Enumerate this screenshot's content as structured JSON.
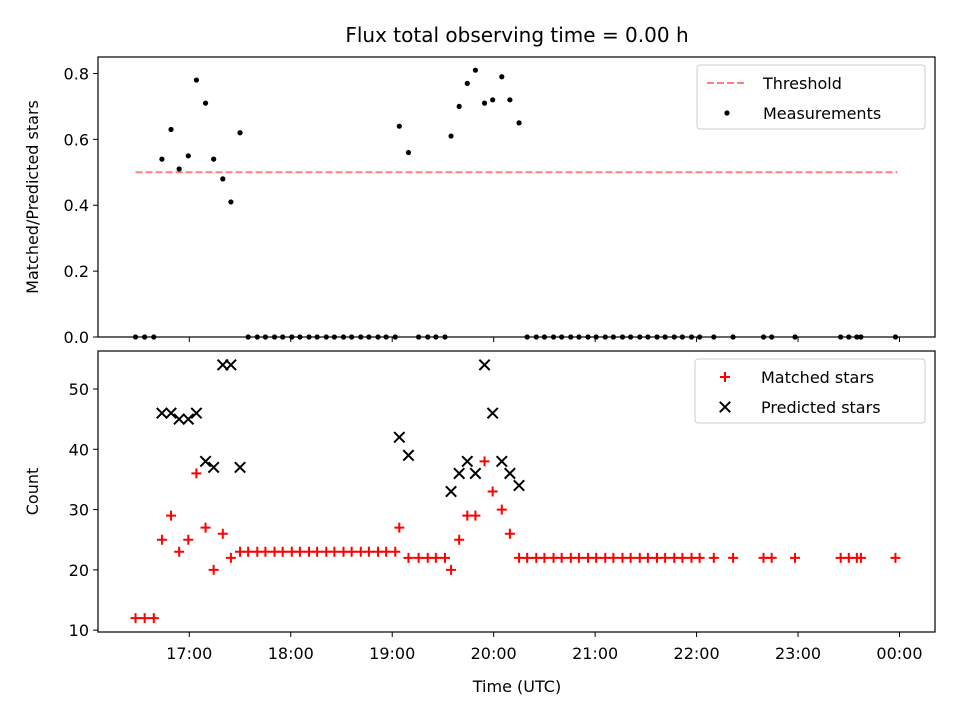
{
  "chart_data": {
    "type": "scatter",
    "title": "Flux total observing time = 0.00 h",
    "xlabel": "Time (UTC)",
    "x_unit": "hours since 00:00 on the first day shown",
    "xlim": [
      16.1,
      24.35
    ],
    "x_ticks": [
      {
        "value": 17,
        "label": "17:00"
      },
      {
        "value": 18,
        "label": "18:00"
      },
      {
        "value": 19,
        "label": "19:00"
      },
      {
        "value": 20,
        "label": "20:00"
      },
      {
        "value": 21,
        "label": "21:00"
      },
      {
        "value": 22,
        "label": "22:00"
      },
      {
        "value": 23,
        "label": "23:00"
      },
      {
        "value": 24,
        "label": "00:00"
      }
    ],
    "panels": [
      {
        "ylabel": "Matched/Predicted stars",
        "ylim": [
          0,
          0.85
        ],
        "y_ticks": [
          0,
          0.2,
          0.4,
          0.6,
          0.8
        ],
        "y_tick_labels": [
          "0.0",
          "0.2",
          "0.4",
          "0.6",
          "0.8"
        ],
        "legend": [
          "Threshold",
          "Measurements"
        ],
        "series": [
          {
            "name": "Threshold",
            "kind": "dashed-line",
            "color": "#ff7f7f",
            "x": [
              16.47,
              23.98
            ],
            "y": [
              0.5,
              0.5
            ]
          },
          {
            "name": "Measurements",
            "kind": "dot",
            "color": "#000000",
            "points": [
              [
                16.47,
                0
              ],
              [
                16.56,
                0
              ],
              [
                16.65,
                0
              ],
              [
                16.73,
                0.54
              ],
              [
                16.82,
                0.63
              ],
              [
                16.9,
                0.51
              ],
              [
                16.99,
                0.55
              ],
              [
                17.07,
                0.78
              ],
              [
                17.16,
                0.71
              ],
              [
                17.24,
                0.54
              ],
              [
                17.33,
                0.48
              ],
              [
                17.41,
                0.41
              ],
              [
                17.5,
                0.62
              ],
              [
                17.58,
                0
              ],
              [
                17.67,
                0
              ],
              [
                17.75,
                0
              ],
              [
                17.84,
                0
              ],
              [
                17.92,
                0
              ],
              [
                18.01,
                0
              ],
              [
                18.09,
                0
              ],
              [
                18.18,
                0
              ],
              [
                18.26,
                0
              ],
              [
                18.35,
                0
              ],
              [
                18.43,
                0
              ],
              [
                18.52,
                0
              ],
              [
                18.6,
                0
              ],
              [
                18.69,
                0
              ],
              [
                18.77,
                0
              ],
              [
                18.86,
                0
              ],
              [
                18.94,
                0
              ],
              [
                19.03,
                0
              ],
              [
                19.07,
                0.64
              ],
              [
                19.16,
                0.56
              ],
              [
                19.26,
                0
              ],
              [
                19.35,
                0
              ],
              [
                19.43,
                0
              ],
              [
                19.52,
                0
              ],
              [
                19.58,
                0.61
              ],
              [
                19.66,
                0.7
              ],
              [
                19.74,
                0.77
              ],
              [
                19.82,
                0.81
              ],
              [
                19.91,
                0.71
              ],
              [
                19.99,
                0.72
              ],
              [
                20.08,
                0.79
              ],
              [
                20.16,
                0.72
              ],
              [
                20.25,
                0.65
              ],
              [
                20.33,
                0
              ],
              [
                20.42,
                0
              ],
              [
                20.5,
                0
              ],
              [
                20.59,
                0
              ],
              [
                20.67,
                0
              ],
              [
                20.76,
                0
              ],
              [
                20.84,
                0
              ],
              [
                20.93,
                0
              ],
              [
                21.01,
                0
              ],
              [
                21.1,
                0
              ],
              [
                21.18,
                0
              ],
              [
                21.27,
                0
              ],
              [
                21.35,
                0
              ],
              [
                21.44,
                0
              ],
              [
                21.52,
                0
              ],
              [
                21.61,
                0
              ],
              [
                21.69,
                0
              ],
              [
                21.78,
                0
              ],
              [
                21.86,
                0
              ],
              [
                21.95,
                0
              ],
              [
                22.03,
                0
              ],
              [
                22.17,
                0
              ],
              [
                22.36,
                0
              ],
              [
                22.66,
                0
              ],
              [
                22.74,
                0
              ],
              [
                22.97,
                0
              ],
              [
                23.42,
                0
              ],
              [
                23.5,
                0
              ],
              [
                23.58,
                0
              ],
              [
                23.62,
                0
              ],
              [
                23.96,
                0
              ]
            ]
          }
        ]
      },
      {
        "ylabel": "Count",
        "ylim": [
          9.7,
          56.3
        ],
        "y_ticks": [
          10,
          20,
          30,
          40,
          50
        ],
        "y_tick_labels": [
          "10",
          "20",
          "30",
          "40",
          "50"
        ],
        "legend": [
          "Matched stars",
          "Predicted stars"
        ],
        "series": [
          {
            "name": "Matched stars",
            "kind": "plus",
            "color": "#ff0000",
            "points": [
              [
                16.47,
                12
              ],
              [
                16.56,
                12
              ],
              [
                16.65,
                12
              ],
              [
                16.73,
                25
              ],
              [
                16.82,
                29
              ],
              [
                16.9,
                23
              ],
              [
                16.99,
                25
              ],
              [
                17.07,
                36
              ],
              [
                17.16,
                27
              ],
              [
                17.24,
                20
              ],
              [
                17.33,
                26
              ],
              [
                17.41,
                22
              ],
              [
                17.5,
                23
              ],
              [
                17.58,
                23
              ],
              [
                17.67,
                23
              ],
              [
                17.75,
                23
              ],
              [
                17.84,
                23
              ],
              [
                17.92,
                23
              ],
              [
                18.01,
                23
              ],
              [
                18.09,
                23
              ],
              [
                18.18,
                23
              ],
              [
                18.26,
                23
              ],
              [
                18.35,
                23
              ],
              [
                18.43,
                23
              ],
              [
                18.52,
                23
              ],
              [
                18.6,
                23
              ],
              [
                18.69,
                23
              ],
              [
                18.77,
                23
              ],
              [
                18.86,
                23
              ],
              [
                18.94,
                23
              ],
              [
                19.03,
                23
              ],
              [
                19.07,
                27
              ],
              [
                19.16,
                22
              ],
              [
                19.26,
                22
              ],
              [
                19.35,
                22
              ],
              [
                19.43,
                22
              ],
              [
                19.52,
                22
              ],
              [
                19.58,
                20
              ],
              [
                19.66,
                25
              ],
              [
                19.74,
                29
              ],
              [
                19.82,
                29
              ],
              [
                19.91,
                38
              ],
              [
                19.99,
                33
              ],
              [
                20.08,
                30
              ],
              [
                20.16,
                26
              ],
              [
                20.25,
                22
              ],
              [
                20.33,
                22
              ],
              [
                20.42,
                22
              ],
              [
                20.5,
                22
              ],
              [
                20.59,
                22
              ],
              [
                20.67,
                22
              ],
              [
                20.76,
                22
              ],
              [
                20.84,
                22
              ],
              [
                20.93,
                22
              ],
              [
                21.01,
                22
              ],
              [
                21.1,
                22
              ],
              [
                21.18,
                22
              ],
              [
                21.27,
                22
              ],
              [
                21.35,
                22
              ],
              [
                21.44,
                22
              ],
              [
                21.52,
                22
              ],
              [
                21.61,
                22
              ],
              [
                21.69,
                22
              ],
              [
                21.78,
                22
              ],
              [
                21.86,
                22
              ],
              [
                21.95,
                22
              ],
              [
                22.03,
                22
              ],
              [
                22.17,
                22
              ],
              [
                22.36,
                22
              ],
              [
                22.66,
                22
              ],
              [
                22.74,
                22
              ],
              [
                22.97,
                22
              ],
              [
                23.42,
                22
              ],
              [
                23.5,
                22
              ],
              [
                23.58,
                22
              ],
              [
                23.62,
                22
              ],
              [
                23.96,
                22
              ]
            ]
          },
          {
            "name": "Predicted stars",
            "kind": "cross",
            "color": "#000000",
            "points": [
              [
                16.73,
                46
              ],
              [
                16.82,
                46
              ],
              [
                16.9,
                45
              ],
              [
                16.99,
                45
              ],
              [
                17.07,
                46
              ],
              [
                17.16,
                38
              ],
              [
                17.24,
                37
              ],
              [
                17.33,
                54
              ],
              [
                17.41,
                54
              ],
              [
                17.5,
                37
              ],
              [
                19.07,
                42
              ],
              [
                19.16,
                39
              ],
              [
                19.58,
                33
              ],
              [
                19.66,
                36
              ],
              [
                19.74,
                38
              ],
              [
                19.82,
                36
              ],
              [
                19.91,
                54
              ],
              [
                19.99,
                46
              ],
              [
                20.08,
                38
              ],
              [
                20.16,
                36
              ],
              [
                20.25,
                34
              ]
            ]
          }
        ]
      }
    ]
  }
}
